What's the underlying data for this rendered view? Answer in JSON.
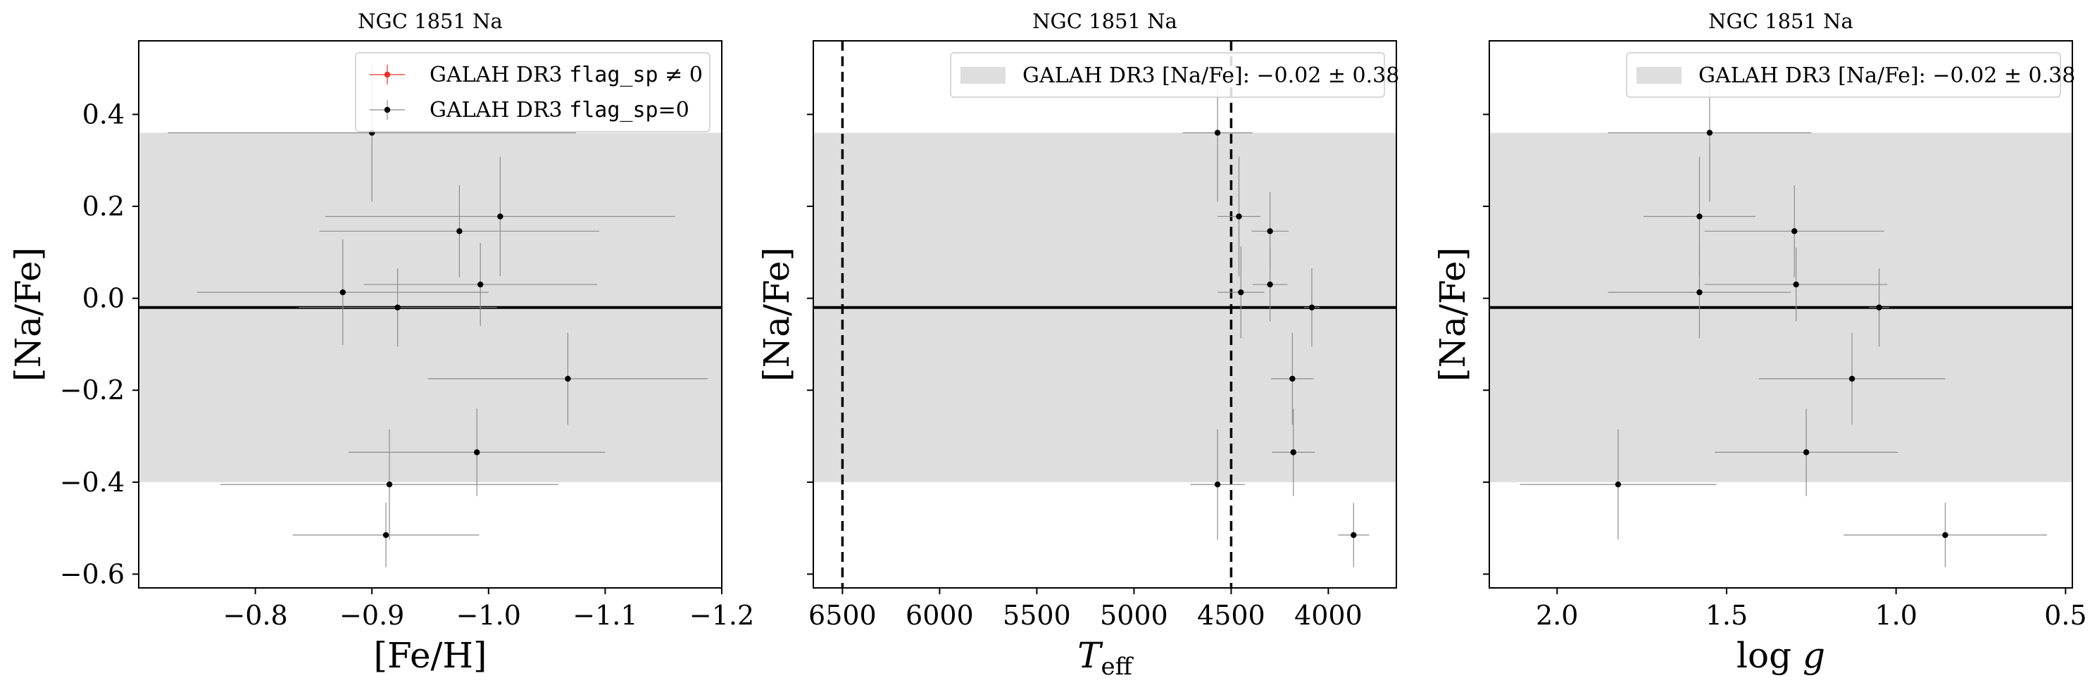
{
  "chart_data": [
    {
      "type": "scatter",
      "title": "NGC 1851 Na",
      "xlabel": "[Fe/H]",
      "ylabel": "[Na/Fe]",
      "xlim": [
        -0.7,
        -1.2
      ],
      "ylim": [
        -0.63,
        0.56
      ],
      "x_inverted": true,
      "xticks": [
        -0.8,
        -0.9,
        -1.0,
        -1.1,
        -1.2
      ],
      "xtick_labels": [
        "−0.8",
        "−0.9",
        "−1.0",
        "−1.1",
        "−1.2"
      ],
      "yticks": [
        0.4,
        0.2,
        0.0,
        -0.2,
        -0.4,
        -0.6
      ],
      "ytick_labels": [
        "0.4",
        "0.2",
        "0.0",
        "−0.2",
        "−0.4",
        "−0.6"
      ],
      "band": {
        "mean": -0.02,
        "std": 0.38
      },
      "legend_position": "top-right",
      "legend": [
        {
          "label": "GALAH DR3 ",
          "code": "flag_sp",
          "suffix": " ≠ 0",
          "color": "#e8322a"
        },
        {
          "label": "GALAH DR3 ",
          "code": "flag_sp",
          "suffix": "=0",
          "color": "#000000"
        }
      ],
      "series": [
        {
          "name": "GALAH DR3 flag_sp=0",
          "points": [
            {
              "x": -0.9,
              "y": 0.36,
              "xerr": 0.175,
              "yerr": 0.15
            },
            {
              "x": -0.975,
              "y": 0.146,
              "xerr": 0.12,
              "yerr": 0.1
            },
            {
              "x": -1.01,
              "y": 0.178,
              "xerr": 0.15,
              "yerr": 0.13
            },
            {
              "x": -0.993,
              "y": 0.03,
              "xerr": 0.1,
              "yerr": 0.09
            },
            {
              "x": -0.875,
              "y": 0.013,
              "xerr": 0.125,
              "yerr": 0.115
            },
            {
              "x": -0.922,
              "y": -0.02,
              "xerr": 0.085,
              "yerr": 0.085
            },
            {
              "x": -1.068,
              "y": -0.175,
              "xerr": 0.12,
              "yerr": 0.1
            },
            {
              "x": -0.99,
              "y": -0.335,
              "xerr": 0.11,
              "yerr": 0.095
            },
            {
              "x": -0.915,
              "y": -0.405,
              "xerr": 0.145,
              "yerr": 0.12
            },
            {
              "x": -0.912,
              "y": -0.515,
              "xerr": 0.08,
              "yerr": 0.07
            }
          ]
        }
      ]
    },
    {
      "type": "scatter",
      "title": "NGC 1851 Na",
      "xlabel": "T_eff",
      "ylabel": "[Na/Fe]",
      "xlim": [
        6650,
        3650
      ],
      "ylim": [
        -0.63,
        0.56
      ],
      "x_inverted": true,
      "xticks": [
        6500,
        6000,
        5500,
        5000,
        4500,
        4000
      ],
      "xtick_labels": [
        "6500",
        "6000",
        "5500",
        "5000",
        "4500",
        "4000"
      ],
      "yticks": [
        0.4,
        0.2,
        0.0,
        -0.2,
        -0.4,
        -0.6
      ],
      "vlines": [
        6500,
        4500
      ],
      "band": {
        "mean": -0.02,
        "std": 0.38
      },
      "legend_position": "top-right",
      "legend": [
        {
          "label": "GALAH DR3 [Na/Fe]: −0.02 ± 0.38",
          "color": "#dedede"
        }
      ],
      "series": [
        {
          "name": "",
          "points": [
            {
              "x": 4570,
              "y": 0.36,
              "xerr": 180,
              "yerr": 0.15
            },
            {
              "x": 4460,
              "y": 0.178,
              "xerr": 110,
              "yerr": 0.13
            },
            {
              "x": 4300,
              "y": 0.146,
              "xerr": 95,
              "yerr": 0.085
            },
            {
              "x": 4300,
              "y": 0.03,
              "xerr": 90,
              "yerr": 0.08
            },
            {
              "x": 4450,
              "y": 0.013,
              "xerr": 120,
              "yerr": 0.1
            },
            {
              "x": 4085,
              "y": -0.02,
              "xerr": 40,
              "yerr": 0.085
            },
            {
              "x": 4185,
              "y": -0.175,
              "xerr": 110,
              "yerr": 0.1
            },
            {
              "x": 4180,
              "y": -0.335,
              "xerr": 110,
              "yerr": 0.095
            },
            {
              "x": 4570,
              "y": -0.405,
              "xerr": 140,
              "yerr": 0.12
            },
            {
              "x": 3870,
              "y": -0.515,
              "xerr": 80,
              "yerr": 0.07
            }
          ]
        }
      ]
    },
    {
      "type": "scatter",
      "title": "NGC 1851 Na",
      "xlabel": "log g",
      "ylabel": "[Na/Fe]",
      "xlim": [
        2.2,
        0.48
      ],
      "ylim": [
        -0.63,
        0.56
      ],
      "x_inverted": true,
      "xticks": [
        2.0,
        1.5,
        1.0,
        0.5
      ],
      "xtick_labels": [
        "2.0",
        "1.5",
        "1.0",
        "0.5"
      ],
      "yticks": [
        0.4,
        0.2,
        0.0,
        -0.2,
        -0.4,
        -0.6
      ],
      "band": {
        "mean": -0.02,
        "std": 0.38
      },
      "legend_position": "top-right",
      "legend": [
        {
          "label": "GALAH DR3 [Na/Fe]: −0.02 ± 0.38",
          "color": "#dedede"
        }
      ],
      "series": [
        {
          "name": "",
          "points": [
            {
              "x": 1.55,
              "y": 0.36,
              "xerr": 0.3,
              "yerr": 0.15
            },
            {
              "x": 1.58,
              "y": 0.178,
              "xerr": 0.165,
              "yerr": 0.13
            },
            {
              "x": 1.3,
              "y": 0.146,
              "xerr": 0.265,
              "yerr": 0.1
            },
            {
              "x": 1.295,
              "y": 0.03,
              "xerr": 0.27,
              "yerr": 0.08
            },
            {
              "x": 1.58,
              "y": 0.013,
              "xerr": 0.27,
              "yerr": 0.1
            },
            {
              "x": 1.05,
              "y": -0.02,
              "xerr": 0.03,
              "yerr": 0.085
            },
            {
              "x": 1.13,
              "y": -0.175,
              "xerr": 0.275,
              "yerr": 0.1
            },
            {
              "x": 1.265,
              "y": -0.335,
              "xerr": 0.27,
              "yerr": 0.095
            },
            {
              "x": 1.82,
              "y": -0.405,
              "xerr": 0.29,
              "yerr": 0.12
            },
            {
              "x": 0.855,
              "y": -0.515,
              "xerr": 0.3,
              "yerr": 0.07
            }
          ]
        }
      ]
    }
  ]
}
